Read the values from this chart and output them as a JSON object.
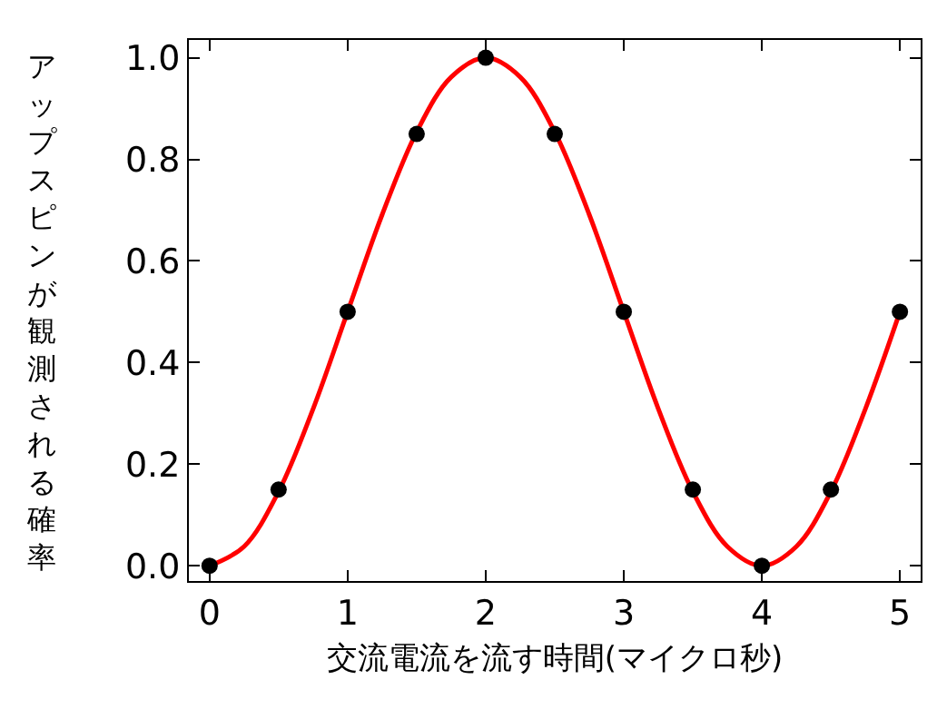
{
  "chart_data": {
    "type": "scatter",
    "xlabel": "交流電流を流す時間(マイクロ秒)",
    "ylabel": "アップスピンが観測される確率",
    "xlim": [
      -0.15,
      5.15
    ],
    "ylim": [
      -0.03,
      1.035
    ],
    "xticks": [
      0,
      1,
      2,
      3,
      4,
      5
    ],
    "yticks": [
      {
        "value": 0,
        "label": "0.0"
      },
      0.2,
      0.4,
      0.6,
      0.8,
      {
        "value": 1,
        "label": "1.0"
      }
    ],
    "legend": false,
    "series": [
      {
        "type": "line",
        "color": "#ff0000",
        "marker": "none",
        "x": [
          0,
          0.25,
          0.5,
          0.75,
          1,
          1.25,
          1.5,
          1.75,
          2,
          2.25,
          2.5,
          2.75,
          3,
          3.25,
          3.5,
          3.75,
          4,
          4.25,
          4.5,
          4.75,
          5
        ],
        "values": [
          0,
          0.038,
          0.146,
          0.309,
          0.5,
          0.691,
          0.854,
          0.962,
          1,
          0.962,
          0.854,
          0.691,
          0.5,
          0.309,
          0.146,
          0.038,
          0,
          0.038,
          0.146,
          0.309,
          0.5
        ]
      },
      {
        "color": "#000000",
        "marker": "circle",
        "x": [
          0,
          0.5,
          1,
          1.5,
          2,
          2.5,
          3,
          3.5,
          4,
          4.5,
          5
        ],
        "values": [
          0,
          0.15,
          0.5,
          0.85,
          1,
          0.85,
          0.5,
          0.15,
          0,
          0.15,
          0.5
        ]
      }
    ]
  }
}
